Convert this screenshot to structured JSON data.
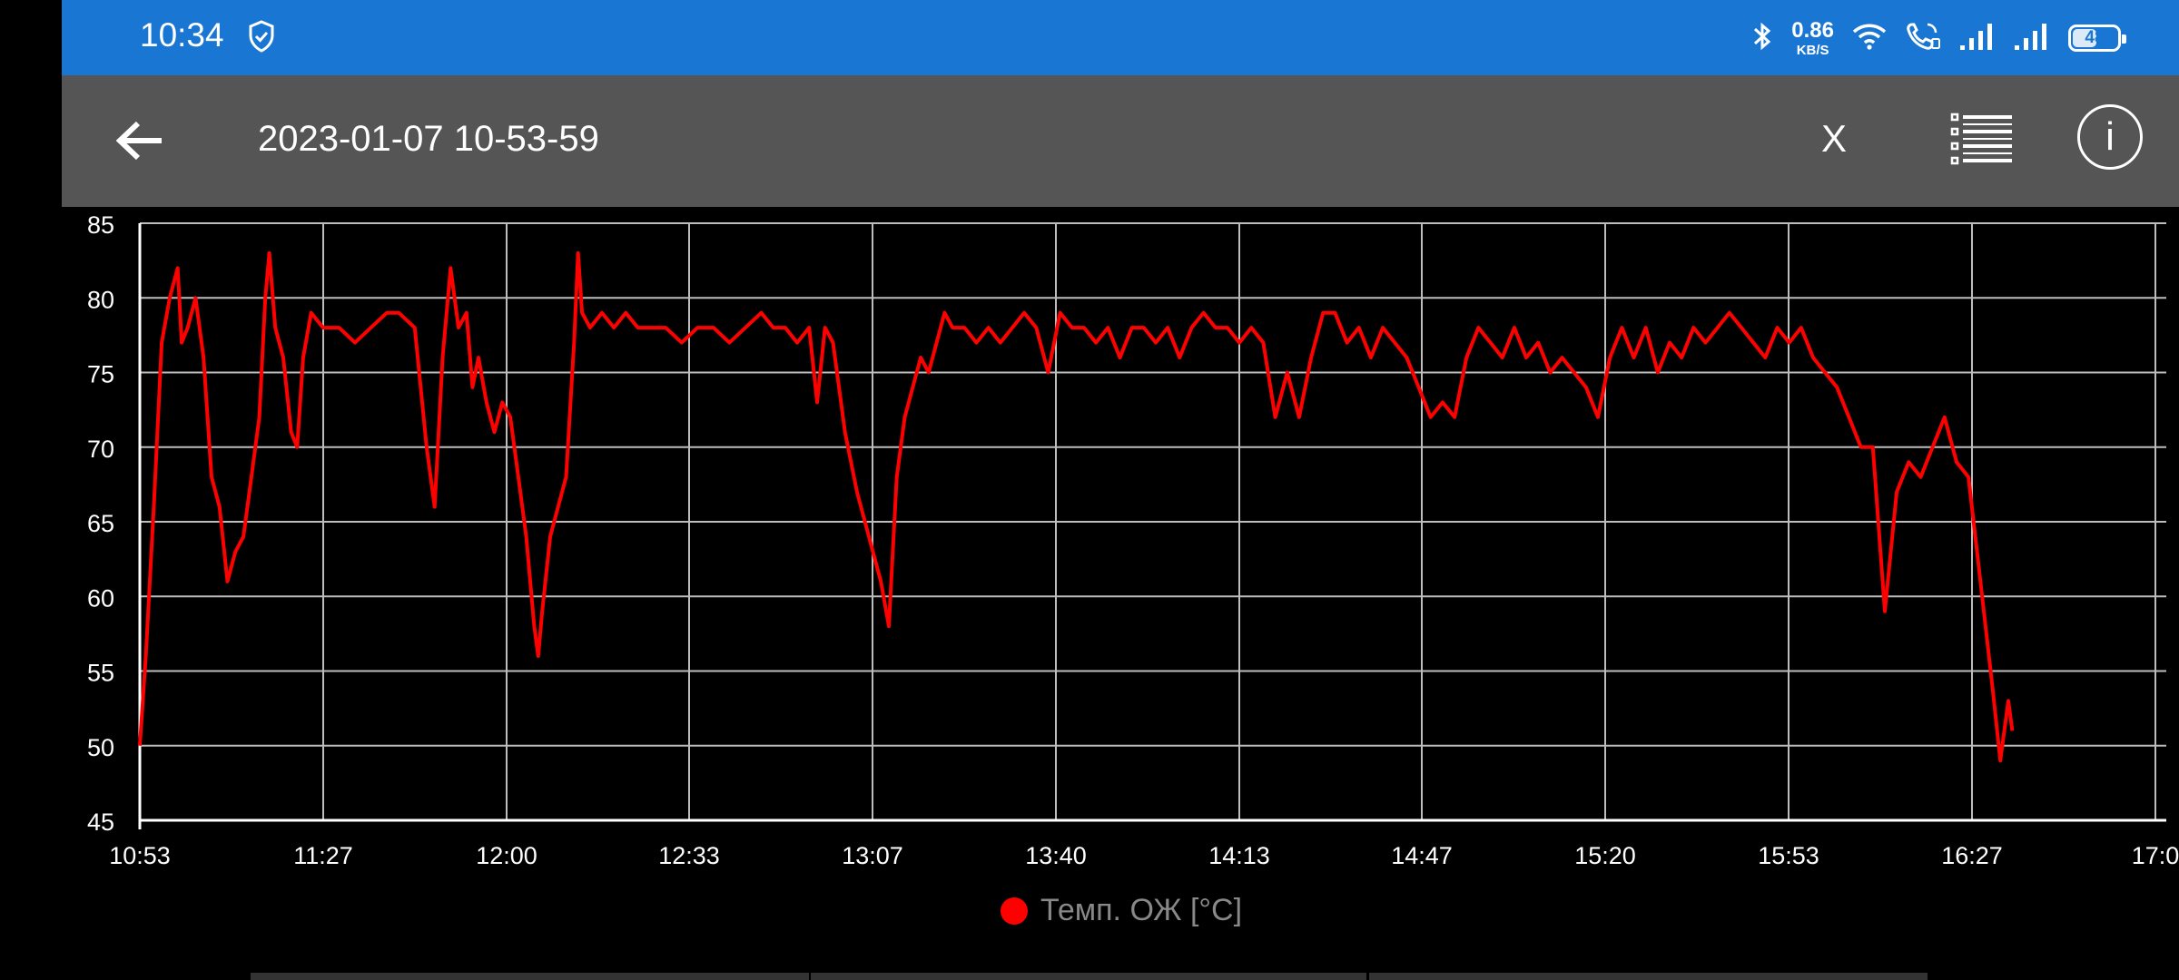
{
  "status_bar": {
    "time": "10:34",
    "net_speed_value": "0.86",
    "net_speed_unit": "KB/S",
    "battery": "48",
    "icons": [
      "shield-check-icon",
      "bluetooth-icon",
      "wifi-icon",
      "wifi-calling-icon",
      "signal-icon",
      "signal-icon"
    ]
  },
  "app_bar": {
    "title": "2023-01-07 10-53-59",
    "x_label": "X",
    "icons": [
      "back-arrow-icon",
      "list-icon",
      "info-icon"
    ],
    "color": "#555555"
  },
  "accent_color": "#1976d2",
  "chart_data": {
    "type": "line",
    "ylim": [
      45,
      85
    ],
    "y_ticks": [
      "45",
      "50",
      "55",
      "60",
      "65",
      "70",
      "75",
      "80",
      "85"
    ],
    "x_ticks": [
      "10:53",
      "11:27",
      "12:00",
      "12:33",
      "13:07",
      "13:40",
      "14:13",
      "14:47",
      "15:20",
      "15:53",
      "16:27",
      "17:0"
    ],
    "grid": true,
    "legend_position": "bottom-center",
    "series": [
      {
        "name": "Темп. ОЖ [°C]",
        "color": "#ff0000",
        "points": [
          [
            0.0,
            50
          ],
          [
            0.15,
            56
          ],
          [
            0.35,
            66
          ],
          [
            0.55,
            77
          ],
          [
            0.75,
            80
          ],
          [
            0.95,
            82
          ],
          [
            1.05,
            77
          ],
          [
            1.2,
            78
          ],
          [
            1.4,
            80
          ],
          [
            1.6,
            76
          ],
          [
            1.8,
            68
          ],
          [
            2.0,
            66
          ],
          [
            2.2,
            61
          ],
          [
            2.4,
            63
          ],
          [
            2.6,
            64
          ],
          [
            2.8,
            68
          ],
          [
            3.0,
            72
          ],
          [
            3.15,
            80
          ],
          [
            3.25,
            83
          ],
          [
            3.4,
            78
          ],
          [
            3.6,
            76
          ],
          [
            3.8,
            71
          ],
          [
            3.95,
            70
          ],
          [
            4.1,
            76
          ],
          [
            4.3,
            79
          ],
          [
            4.6,
            78
          ],
          [
            5.0,
            78
          ],
          [
            5.4,
            77
          ],
          [
            5.8,
            78
          ],
          [
            6.2,
            79
          ],
          [
            6.5,
            79
          ],
          [
            6.9,
            78
          ],
          [
            7.2,
            70
          ],
          [
            7.4,
            66
          ],
          [
            7.6,
            76
          ],
          [
            7.8,
            82
          ],
          [
            8.0,
            78
          ],
          [
            8.2,
            79
          ],
          [
            8.35,
            74
          ],
          [
            8.5,
            76
          ],
          [
            8.7,
            73
          ],
          [
            8.9,
            71
          ],
          [
            9.1,
            73
          ],
          [
            9.3,
            72
          ],
          [
            9.5,
            68
          ],
          [
            9.7,
            64
          ],
          [
            9.9,
            58
          ],
          [
            10.0,
            56
          ],
          [
            10.1,
            59
          ],
          [
            10.3,
            64
          ],
          [
            10.5,
            66
          ],
          [
            10.7,
            68
          ],
          [
            10.9,
            77
          ],
          [
            11.0,
            83
          ],
          [
            11.1,
            79
          ],
          [
            11.3,
            78
          ],
          [
            11.6,
            79
          ],
          [
            11.9,
            78
          ],
          [
            12.2,
            79
          ],
          [
            12.5,
            78
          ],
          [
            12.8,
            78
          ],
          [
            13.2,
            78
          ],
          [
            13.6,
            77
          ],
          [
            14.0,
            78
          ],
          [
            14.4,
            78
          ],
          [
            14.8,
            77
          ],
          [
            15.2,
            78
          ],
          [
            15.6,
            79
          ],
          [
            15.9,
            78
          ],
          [
            16.2,
            78
          ],
          [
            16.5,
            77
          ],
          [
            16.8,
            78
          ],
          [
            17.0,
            73
          ],
          [
            17.2,
            78
          ],
          [
            17.4,
            77
          ],
          [
            17.7,
            71
          ],
          [
            18.0,
            67
          ],
          [
            18.3,
            64
          ],
          [
            18.6,
            61
          ],
          [
            18.8,
            58
          ],
          [
            19.0,
            68
          ],
          [
            19.2,
            72
          ],
          [
            19.4,
            74
          ],
          [
            19.6,
            76
          ],
          [
            19.8,
            75
          ],
          [
            20.0,
            77
          ],
          [
            20.2,
            79
          ],
          [
            20.4,
            78
          ],
          [
            20.7,
            78
          ],
          [
            21.0,
            77
          ],
          [
            21.3,
            78
          ],
          [
            21.6,
            77
          ],
          [
            21.9,
            78
          ],
          [
            22.2,
            79
          ],
          [
            22.5,
            78
          ],
          [
            22.8,
            75
          ],
          [
            23.1,
            79
          ],
          [
            23.4,
            78
          ],
          [
            23.7,
            78
          ],
          [
            24.0,
            77
          ],
          [
            24.3,
            78
          ],
          [
            24.6,
            76
          ],
          [
            24.9,
            78
          ],
          [
            25.2,
            78
          ],
          [
            25.5,
            77
          ],
          [
            25.8,
            78
          ],
          [
            26.1,
            76
          ],
          [
            26.4,
            78
          ],
          [
            26.7,
            79
          ],
          [
            27.0,
            78
          ],
          [
            27.3,
            78
          ],
          [
            27.6,
            77
          ],
          [
            27.9,
            78
          ],
          [
            28.2,
            77
          ],
          [
            28.5,
            72
          ],
          [
            28.8,
            75
          ],
          [
            29.1,
            72
          ],
          [
            29.4,
            76
          ],
          [
            29.7,
            79
          ],
          [
            30.0,
            79
          ],
          [
            30.3,
            77
          ],
          [
            30.6,
            78
          ],
          [
            30.9,
            76
          ],
          [
            31.2,
            78
          ],
          [
            31.5,
            77
          ],
          [
            31.8,
            76
          ],
          [
            32.1,
            74
          ],
          [
            32.4,
            72
          ],
          [
            32.7,
            73
          ],
          [
            33.0,
            72
          ],
          [
            33.3,
            76
          ],
          [
            33.6,
            78
          ],
          [
            33.9,
            77
          ],
          [
            34.2,
            76
          ],
          [
            34.5,
            78
          ],
          [
            34.8,
            76
          ],
          [
            35.1,
            77
          ],
          [
            35.4,
            75
          ],
          [
            35.7,
            76
          ],
          [
            36.0,
            75
          ],
          [
            36.3,
            74
          ],
          [
            36.6,
            72
          ],
          [
            36.9,
            76
          ],
          [
            37.2,
            78
          ],
          [
            37.5,
            76
          ],
          [
            37.8,
            78
          ],
          [
            38.1,
            75
          ],
          [
            38.4,
            77
          ],
          [
            38.7,
            76
          ],
          [
            39.0,
            78
          ],
          [
            39.3,
            77
          ],
          [
            39.6,
            78
          ],
          [
            39.9,
            79
          ],
          [
            40.2,
            78
          ],
          [
            40.5,
            77
          ],
          [
            40.8,
            76
          ],
          [
            41.1,
            78
          ],
          [
            41.4,
            77
          ],
          [
            41.7,
            78
          ],
          [
            42.0,
            76
          ],
          [
            42.3,
            75
          ],
          [
            42.6,
            74
          ],
          [
            42.9,
            72
          ],
          [
            43.2,
            70
          ],
          [
            43.5,
            70
          ],
          [
            43.8,
            59
          ],
          [
            44.1,
            67
          ],
          [
            44.4,
            69
          ],
          [
            44.7,
            68
          ],
          [
            45.0,
            70
          ],
          [
            45.3,
            72
          ],
          [
            45.6,
            69
          ],
          [
            45.9,
            68
          ],
          [
            46.2,
            61
          ],
          [
            46.5,
            54
          ],
          [
            46.7,
            49
          ],
          [
            46.9,
            53
          ],
          [
            47.0,
            51
          ]
        ]
      }
    ]
  }
}
